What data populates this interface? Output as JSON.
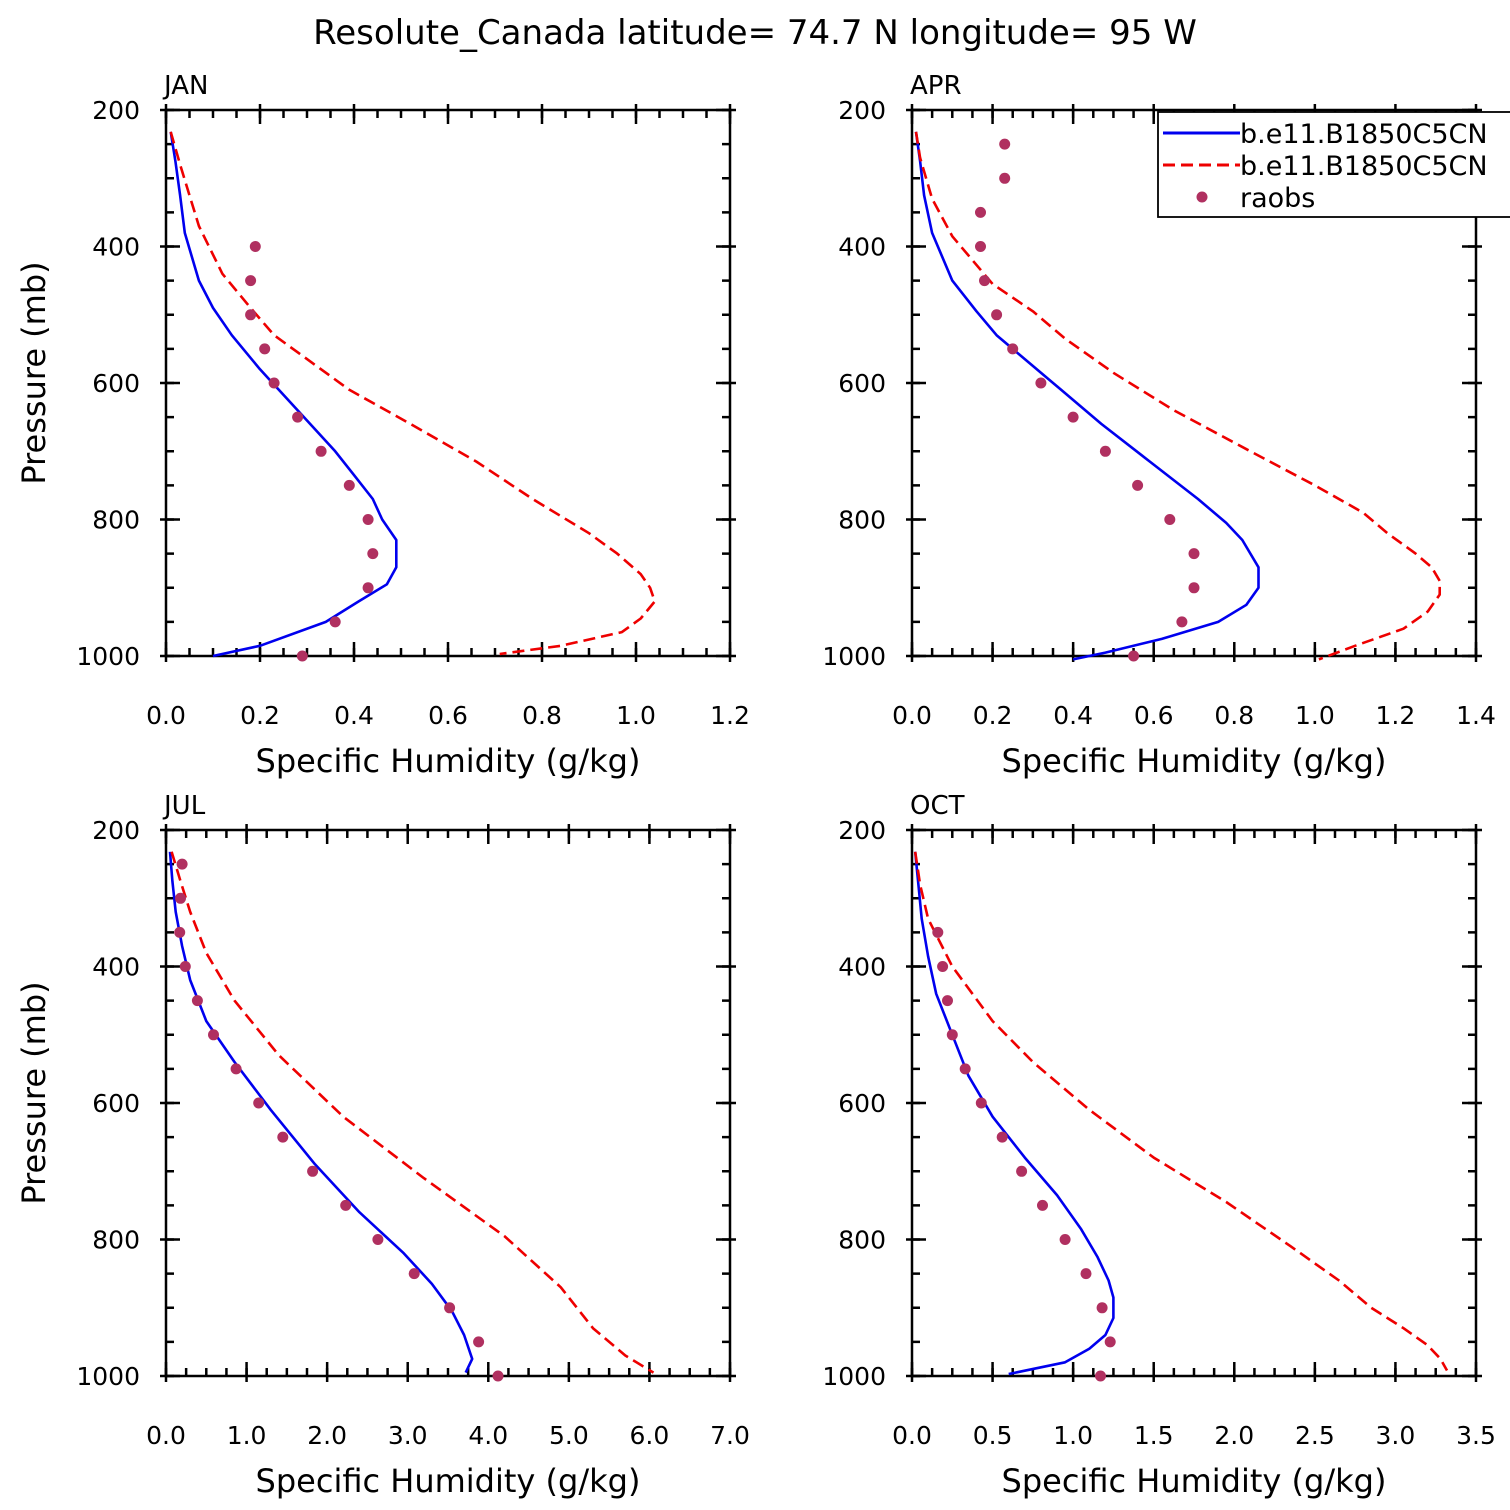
{
  "figure_title": "Resolute_Canada  latitude= 74.7 N longitude= 95 W",
  "colors": {
    "model_a": "#0000ee",
    "model_b": "#ee0000",
    "raobs": "#b03060"
  },
  "legend": {
    "entries": [
      {
        "label": "b.e11.B1850C5CN",
        "style": "solid",
        "color": "#0000ee"
      },
      {
        "label": "b.e11.B1850C5CN",
        "style": "dashed",
        "color": "#ee0000"
      },
      {
        "label": "raobs",
        "style": "dot",
        "color": "#b03060"
      }
    ]
  },
  "chart_data": [
    {
      "type": "line",
      "title": "JAN",
      "xlabel": "Specific Humidity (g/kg)",
      "ylabel": "Pressure (mb)",
      "xlim": [
        0,
        1.2
      ],
      "ylim": [
        200,
        1000
      ],
      "xticks": [
        0,
        0.2,
        0.4,
        0.6,
        0.8,
        1.0,
        1.2
      ],
      "xtick_labels": [
        "0.0",
        "0.2",
        "0.4",
        "0.6",
        "0.8",
        "1.0",
        "1.2"
      ],
      "xminor": 0.05,
      "yticks": [
        200,
        400,
        600,
        800,
        1000
      ],
      "ytick_labels": [
        "200",
        "400",
        "600",
        "800",
        "1000"
      ],
      "series": [
        {
          "name": "b.e11.B1850C5CN",
          "style": "solid",
          "color": "#0000ee",
          "points": [
            [
              0.01,
              232
            ],
            [
              0.02,
              275
            ],
            [
              0.03,
              325
            ],
            [
              0.04,
              380
            ],
            [
              0.07,
              450
            ],
            [
              0.1,
              490
            ],
            [
              0.14,
              530
            ],
            [
              0.2,
              580
            ],
            [
              0.24,
              610
            ],
            [
              0.3,
              655
            ],
            [
              0.36,
              700
            ],
            [
              0.4,
              735
            ],
            [
              0.44,
              770
            ],
            [
              0.46,
              800
            ],
            [
              0.49,
              830
            ],
            [
              0.49,
              870
            ],
            [
              0.47,
              895
            ],
            [
              0.41,
              920
            ],
            [
              0.34,
              950
            ],
            [
              0.2,
              985
            ],
            [
              0.1,
              1000
            ]
          ]
        },
        {
          "name": "b.e11.B1850C5CN",
          "style": "dashed",
          "color": "#ee0000",
          "points": [
            [
              0.01,
              232
            ],
            [
              0.03,
              280
            ],
            [
              0.05,
              325
            ],
            [
              0.07,
              370
            ],
            [
              0.12,
              440
            ],
            [
              0.18,
              490
            ],
            [
              0.23,
              530
            ],
            [
              0.33,
              580
            ],
            [
              0.39,
              610
            ],
            [
              0.52,
              660
            ],
            [
              0.66,
              715
            ],
            [
              0.78,
              770
            ],
            [
              0.9,
              820
            ],
            [
              0.96,
              850
            ],
            [
              1.01,
              880
            ],
            [
              1.03,
              900
            ],
            [
              1.04,
              920
            ],
            [
              1.01,
              945
            ],
            [
              0.97,
              965
            ],
            [
              0.84,
              985
            ],
            [
              0.71,
              997
            ]
          ]
        }
      ],
      "points": {
        "name": "raobs",
        "color": "#b03060",
        "values": [
          [
            0.19,
            400
          ],
          [
            0.18,
            450
          ],
          [
            0.18,
            500
          ],
          [
            0.21,
            550
          ],
          [
            0.23,
            600
          ],
          [
            0.28,
            650
          ],
          [
            0.33,
            700
          ],
          [
            0.39,
            750
          ],
          [
            0.43,
            800
          ],
          [
            0.44,
            850
          ],
          [
            0.43,
            900
          ],
          [
            0.36,
            950
          ],
          [
            0.29,
            1000
          ]
        ]
      }
    },
    {
      "type": "line",
      "title": "APR",
      "xlabel": "Specific Humidity (g/kg)",
      "ylabel": "",
      "xlim": [
        0,
        1.4
      ],
      "ylim": [
        200,
        1000
      ],
      "xticks": [
        0,
        0.2,
        0.4,
        0.6,
        0.8,
        1.0,
        1.2,
        1.4
      ],
      "xtick_labels": [
        "0.0",
        "0.2",
        "0.4",
        "0.6",
        "0.8",
        "1.0",
        "1.2",
        "1.4"
      ],
      "xminor": 0.05,
      "yticks": [
        200,
        400,
        600,
        800,
        1000
      ],
      "ytick_labels": [
        "200",
        "400",
        "600",
        "800",
        "1000"
      ],
      "series": [
        {
          "name": "b.e11.B1850C5CN",
          "style": "solid",
          "color": "#0000ee",
          "points": [
            [
              0.01,
              232
            ],
            [
              0.02,
              275
            ],
            [
              0.03,
              325
            ],
            [
              0.05,
              380
            ],
            [
              0.1,
              450
            ],
            [
              0.16,
              495
            ],
            [
              0.21,
              530
            ],
            [
              0.29,
              570
            ],
            [
              0.37,
              610
            ],
            [
              0.47,
              660
            ],
            [
              0.59,
              715
            ],
            [
              0.71,
              770
            ],
            [
              0.78,
              805
            ],
            [
              0.82,
              830
            ],
            [
              0.86,
              870
            ],
            [
              0.86,
              900
            ],
            [
              0.83,
              925
            ],
            [
              0.76,
              950
            ],
            [
              0.62,
              975
            ],
            [
              0.48,
              995
            ],
            [
              0.4,
              1005
            ]
          ]
        },
        {
          "name": "b.e11.B1850C5CN",
          "style": "dashed",
          "color": "#ee0000",
          "points": [
            [
              0.01,
              232
            ],
            [
              0.02,
              270
            ],
            [
              0.05,
              330
            ],
            [
              0.1,
              385
            ],
            [
              0.2,
              455
            ],
            [
              0.3,
              495
            ],
            [
              0.38,
              535
            ],
            [
              0.5,
              585
            ],
            [
              0.65,
              640
            ],
            [
              0.84,
              700
            ],
            [
              1.0,
              750
            ],
            [
              1.12,
              790
            ],
            [
              1.18,
              820
            ],
            [
              1.25,
              850
            ],
            [
              1.29,
              870
            ],
            [
              1.31,
              890
            ],
            [
              1.31,
              910
            ],
            [
              1.28,
              935
            ],
            [
              1.22,
              960
            ],
            [
              1.1,
              985
            ],
            [
              1.01,
              1005
            ]
          ]
        }
      ],
      "points": {
        "name": "raobs",
        "color": "#b03060",
        "values": [
          [
            0.23,
            250
          ],
          [
            0.23,
            300
          ],
          [
            0.17,
            350
          ],
          [
            0.17,
            400
          ],
          [
            0.18,
            450
          ],
          [
            0.21,
            500
          ],
          [
            0.25,
            550
          ],
          [
            0.32,
            600
          ],
          [
            0.4,
            650
          ],
          [
            0.48,
            700
          ],
          [
            0.56,
            750
          ],
          [
            0.64,
            800
          ],
          [
            0.7,
            850
          ],
          [
            0.7,
            900
          ],
          [
            0.67,
            950
          ],
          [
            0.55,
            1000
          ]
        ]
      }
    },
    {
      "type": "line",
      "title": "JUL",
      "xlabel": "Specific Humidity (g/kg)",
      "ylabel": "Pressure (mb)",
      "xlim": [
        0,
        7.0
      ],
      "ylim": [
        200,
        1000
      ],
      "xticks": [
        0,
        1,
        2,
        3,
        4,
        5,
        6,
        7
      ],
      "xtick_labels": [
        "0.0",
        "1.0",
        "2.0",
        "3.0",
        "4.0",
        "5.0",
        "6.0",
        "7.0"
      ],
      "xminor": 0.25,
      "yticks": [
        200,
        400,
        600,
        800,
        1000
      ],
      "ytick_labels": [
        "200",
        "400",
        "600",
        "800",
        "1000"
      ],
      "series": [
        {
          "name": "b.e11.B1850C5CN",
          "style": "solid",
          "color": "#0000ee",
          "points": [
            [
              0.05,
              232
            ],
            [
              0.08,
              275
            ],
            [
              0.12,
              320
            ],
            [
              0.2,
              370
            ],
            [
              0.3,
              420
            ],
            [
              0.5,
              480
            ],
            [
              0.85,
              540
            ],
            [
              1.3,
              610
            ],
            [
              1.85,
              690
            ],
            [
              2.4,
              760
            ],
            [
              2.95,
              820
            ],
            [
              3.3,
              865
            ],
            [
              3.55,
              905
            ],
            [
              3.7,
              940
            ],
            [
              3.8,
              975
            ],
            [
              3.72,
              995
            ]
          ]
        },
        {
          "name": "b.e11.B1850C5CN",
          "style": "dashed",
          "color": "#ee0000",
          "points": [
            [
              0.07,
              232
            ],
            [
              0.18,
              275
            ],
            [
              0.3,
              320
            ],
            [
              0.5,
              380
            ],
            [
              0.85,
              450
            ],
            [
              1.4,
              530
            ],
            [
              2.2,
              620
            ],
            [
              3.2,
              710
            ],
            [
              4.2,
              795
            ],
            [
              4.9,
              870
            ],
            [
              5.3,
              930
            ],
            [
              5.7,
              970
            ],
            [
              6.05,
              995
            ]
          ]
        }
      ],
      "points": {
        "name": "raobs",
        "color": "#b03060",
        "values": [
          [
            0.2,
            250
          ],
          [
            0.18,
            300
          ],
          [
            0.17,
            350
          ],
          [
            0.24,
            400
          ],
          [
            0.39,
            450
          ],
          [
            0.59,
            500
          ],
          [
            0.87,
            550
          ],
          [
            1.15,
            600
          ],
          [
            1.45,
            650
          ],
          [
            1.82,
            700
          ],
          [
            2.23,
            750
          ],
          [
            2.63,
            800
          ],
          [
            3.08,
            850
          ],
          [
            3.52,
            900
          ],
          [
            3.88,
            950
          ],
          [
            4.12,
            1000
          ]
        ]
      }
    },
    {
      "type": "line",
      "title": "OCT",
      "xlabel": "Specific Humidity (g/kg)",
      "ylabel": "",
      "xlim": [
        0,
        3.5
      ],
      "ylim": [
        200,
        1000
      ],
      "xticks": [
        0,
        0.5,
        1.0,
        1.5,
        2.0,
        2.5,
        3.0,
        3.5
      ],
      "xtick_labels": [
        "0.0",
        "0.5",
        "1.0",
        "1.5",
        "2.0",
        "2.5",
        "3.0",
        "3.5"
      ],
      "xminor": 0.125,
      "yticks": [
        200,
        400,
        600,
        800,
        1000
      ],
      "ytick_labels": [
        "200",
        "400",
        "600",
        "800",
        "1000"
      ],
      "series": [
        {
          "name": "b.e11.B1850C5CN",
          "style": "solid",
          "color": "#0000ee",
          "points": [
            [
              0.02,
              232
            ],
            [
              0.04,
              280
            ],
            [
              0.06,
              330
            ],
            [
              0.1,
              385
            ],
            [
              0.15,
              440
            ],
            [
              0.25,
              500
            ],
            [
              0.35,
              560
            ],
            [
              0.5,
              620
            ],
            [
              0.7,
              680
            ],
            [
              0.9,
              735
            ],
            [
              1.05,
              785
            ],
            [
              1.15,
              825
            ],
            [
              1.22,
              860
            ],
            [
              1.25,
              885
            ],
            [
              1.25,
              915
            ],
            [
              1.2,
              940
            ],
            [
              1.1,
              960
            ],
            [
              0.95,
              980
            ],
            [
              0.6,
              997
            ]
          ]
        },
        {
          "name": "b.e11.B1850C5CN",
          "style": "dashed",
          "color": "#ee0000",
          "points": [
            [
              0.02,
              232
            ],
            [
              0.05,
              280
            ],
            [
              0.1,
              330
            ],
            [
              0.25,
              400
            ],
            [
              0.5,
              480
            ],
            [
              0.75,
              540
            ],
            [
              1.1,
              610
            ],
            [
              1.5,
              680
            ],
            [
              1.95,
              745
            ],
            [
              2.35,
              810
            ],
            [
              2.65,
              860
            ],
            [
              2.85,
              900
            ],
            [
              3.05,
              930
            ],
            [
              3.2,
              955
            ],
            [
              3.28,
              975
            ],
            [
              3.32,
              992
            ]
          ]
        }
      ],
      "points": {
        "name": "raobs",
        "color": "#b03060",
        "values": [
          [
            0.16,
            350
          ],
          [
            0.19,
            400
          ],
          [
            0.22,
            450
          ],
          [
            0.25,
            500
          ],
          [
            0.33,
            550
          ],
          [
            0.43,
            600
          ],
          [
            0.56,
            650
          ],
          [
            0.68,
            700
          ],
          [
            0.81,
            750
          ],
          [
            0.95,
            800
          ],
          [
            1.08,
            850
          ],
          [
            1.18,
            900
          ],
          [
            1.23,
            950
          ],
          [
            1.17,
            1000
          ]
        ]
      }
    }
  ]
}
